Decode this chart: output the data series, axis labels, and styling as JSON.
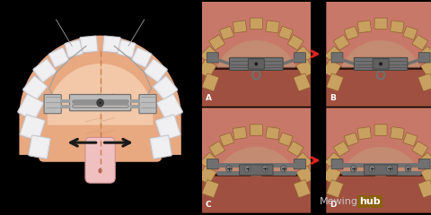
{
  "background_color": "#000000",
  "fig_width": 4.8,
  "fig_height": 2.4,
  "dpi": 100,
  "watermark_text": "Mewing",
  "watermark_text2": "hub",
  "watermark_color1": "#C8C8C8",
  "watermark_bg": "#8B6010",
  "left_bg": "#1A1A1A",
  "mouth_outer": "#E8A880",
  "mouth_inner": "#F2C8A8",
  "mouth_lower": "#E0A070",
  "tooth_color": "#F0F0F2",
  "tooth_edge": "#C0C0C8",
  "tooth_shadow": "#D8D8DC",
  "expander_body": "#BBBBBB",
  "expander_dark": "#909090",
  "expander_edge": "#707070",
  "wire_color": "#A0A0A0",
  "arrow_color": "#1A1A1A",
  "dashed_color": "#C87840",
  "uvula_color": "#F0C0C0",
  "uvula_dark": "#D09090",
  "photo_labels": [
    "A",
    "B",
    "C",
    "D"
  ],
  "red_color": "#DD2222",
  "photo_bg_dark": "#2A1008",
  "photo_gum_top": "#C87868",
  "photo_gum_lower": "#A05040",
  "photo_tooth": "#C8A060",
  "photo_tooth_edge": "#906030",
  "photo_metal": "#707070",
  "photo_metal_edge": "#404040"
}
